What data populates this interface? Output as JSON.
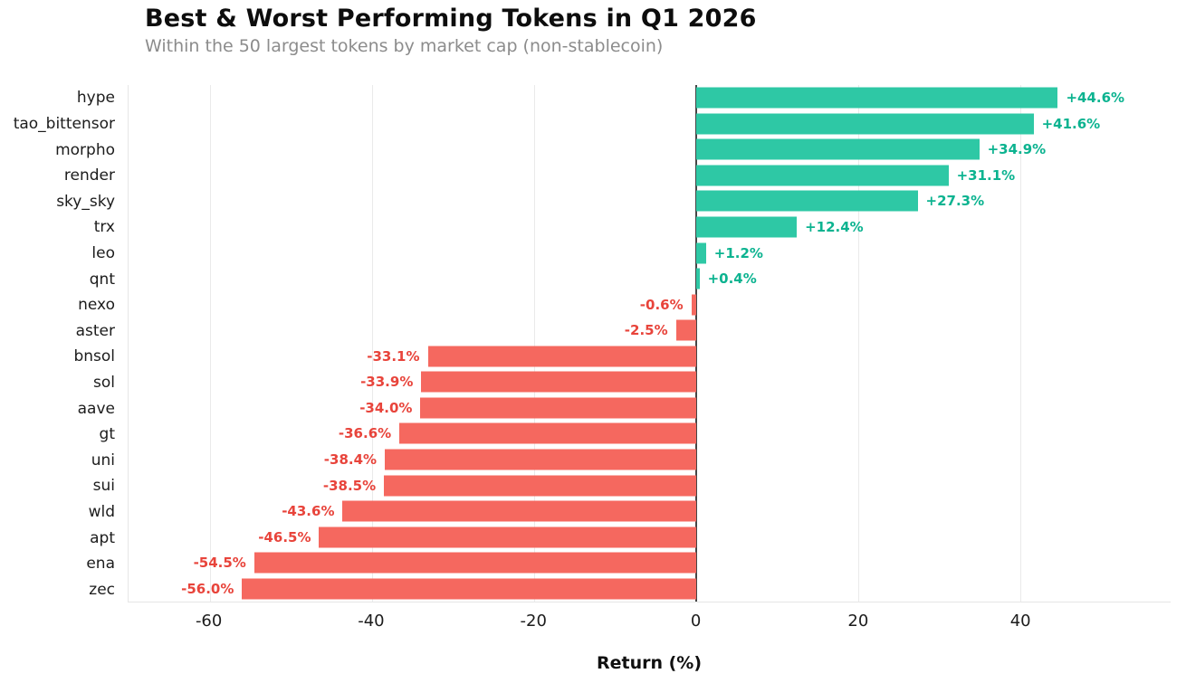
{
  "chart_data": {
    "type": "bar",
    "orientation": "horizontal",
    "title": "Best & Worst Performing Tokens in Q1 2026",
    "subtitle": "Within the 50 largest tokens by market cap (non-stablecoin)",
    "xlabel": "Return (%)",
    "categories": [
      "hype",
      "tao_bittensor",
      "morpho",
      "render",
      "sky_sky",
      "trx",
      "leo",
      "qnt",
      "nexo",
      "aster",
      "bnsol",
      "sol",
      "aave",
      "gt",
      "uni",
      "sui",
      "wld",
      "apt",
      "ena",
      "zec"
    ],
    "values": [
      44.6,
      41.6,
      34.9,
      31.1,
      27.3,
      12.4,
      1.2,
      0.4,
      -0.6,
      -2.5,
      -33.1,
      -33.9,
      -34.0,
      -36.6,
      -38.4,
      -38.5,
      -43.6,
      -46.5,
      -54.5,
      -56.0
    ],
    "value_labels": [
      "+44.6%",
      "+41.6%",
      "+34.9%",
      "+31.1%",
      "+27.3%",
      "+12.4%",
      "+1.2%",
      "+0.4%",
      "-0.6%",
      "-2.5%",
      "-33.1%",
      "-33.9%",
      "-34.0%",
      "-36.6%",
      "-38.4%",
      "-38.5%",
      "-43.6%",
      "-46.5%",
      "-54.5%",
      "-56.0%"
    ],
    "xticks": [
      -60,
      -40,
      -20,
      0,
      20,
      40
    ],
    "xlim": [
      -70,
      58.5
    ],
    "grid": true,
    "legend": false,
    "colors": {
      "positive_bar": "#2ec8a5",
      "positive_text": "#0cb390",
      "negative_bar": "#f5685f",
      "negative_text": "#e8443b"
    }
  }
}
